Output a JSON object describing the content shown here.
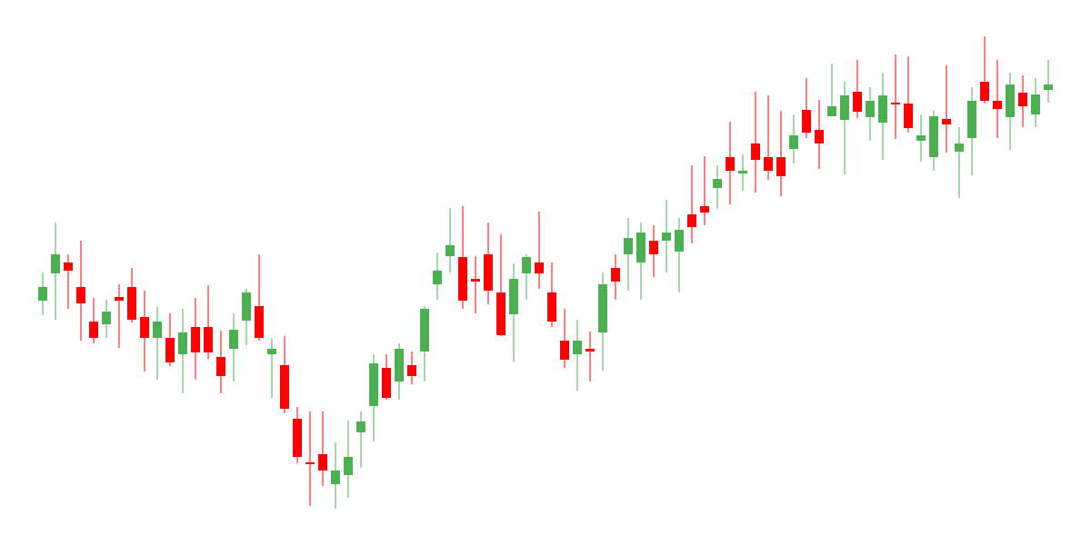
{
  "chart_data": {
    "type": "candlestick",
    "up_color": "#4caf50",
    "down_color": "#ff0000",
    "open": [
      269,
      299,
      311,
      284,
      246,
      243,
      273,
      284,
      251,
      228,
      228,
      210,
      240,
      240,
      207,
      216,
      247,
      263,
      210,
      198,
      139,
      91,
      100,
      67,
      77,
      124,
      153,
      195,
      180,
      198,
      213,
      287,
      318,
      317,
      293,
      320,
      278,
      254,
      299,
      311,
      278,
      225,
      210,
      216,
      234,
      305,
      320,
      311,
      335,
      335,
      323,
      364,
      373,
      393,
      427,
      409,
      442,
      427,
      427,
      436,
      479,
      457,
      472,
      468,
      499,
      471,
      465,
      487,
      486,
      445,
      427,
      469,
      433,
      448,
      510,
      489,
      471,
      498,
      474,
      501
    ],
    "high": [
      300,
      355,
      320,
      335,
      272,
      270,
      287,
      305,
      280,
      262,
      255,
      260,
      272,
      286,
      236,
      255,
      282,
      320,
      228,
      230,
      152,
      147,
      147,
      113,
      137,
      147,
      210,
      210,
      222,
      213,
      263,
      322,
      371,
      373,
      318,
      355,
      342,
      310,
      320,
      367,
      311,
      260,
      248,
      235,
      300,
      320,
      360,
      355,
      352,
      380,
      360,
      418,
      428,
      418,
      466,
      430,
      499,
      495,
      478,
      474,
      514,
      490,
      530,
      510,
      534,
      504,
      520,
      540,
      538,
      474,
      478,
      528,
      460,
      504,
      560,
      534,
      520,
      517,
      514,
      534
    ],
    "low": [
      253,
      248,
      260,
      225,
      222,
      228,
      217,
      245,
      191,
      182,
      197,
      167,
      182,
      205,
      167,
      180,
      220,
      225,
      162,
      145,
      90,
      43,
      65,
      40,
      52,
      85,
      114,
      160,
      160,
      177,
      180,
      270,
      300,
      260,
      255,
      265,
      230,
      202,
      270,
      282,
      240,
      195,
      170,
      180,
      192,
      270,
      280,
      270,
      295,
      300,
      278,
      332,
      352,
      370,
      375,
      390,
      388,
      402,
      384,
      420,
      448,
      414,
      472,
      408,
      470,
      445,
      424,
      447,
      454,
      422,
      412,
      432,
      382,
      407,
      486,
      448,
      435,
      460,
      460,
      487
    ],
    "close": [
      284,
      320,
      302,
      266,
      228,
      257,
      269,
      248,
      228,
      246,
      201,
      234,
      212,
      212,
      186,
      237,
      278,
      228,
      216,
      150,
      97,
      90,
      82,
      82,
      97,
      136,
      200,
      162,
      216,
      186,
      260,
      302,
      330,
      269,
      290,
      280,
      231,
      293,
      317,
      299,
      246,
      204,
      225,
      213,
      287,
      290,
      338,
      344,
      320,
      344,
      347,
      350,
      366,
      403,
      412,
      412,
      424,
      412,
      406,
      451,
      454,
      442,
      483,
      495,
      477,
      489,
      495,
      486,
      459,
      451,
      472,
      463,
      442,
      489,
      489,
      480,
      507,
      483,
      496,
      507
    ]
  }
}
